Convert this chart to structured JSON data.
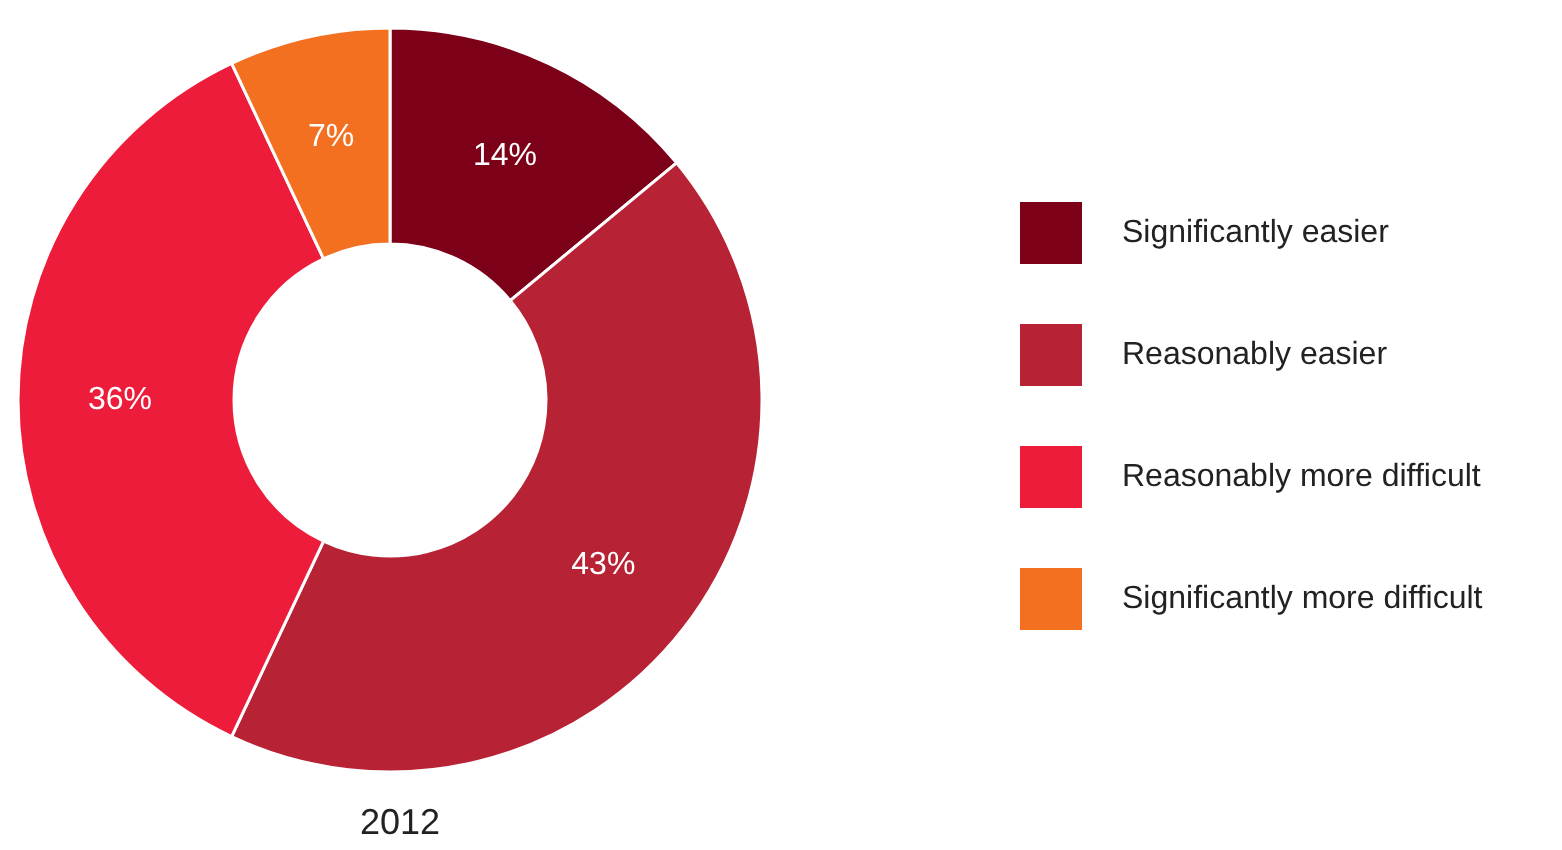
{
  "chart_data": {
    "type": "donut",
    "title": "2012",
    "categories": [
      "Significantly easier",
      "Reasonably easier",
      "Reasonably more difficult",
      "Significantly more difficult"
    ],
    "values": [
      14,
      43,
      36,
      7
    ],
    "colors": [
      "#7d0019",
      "#b72234",
      "#ec1c3a",
      "#f37021"
    ],
    "value_labels": [
      "14%",
      "43%",
      "36%",
      "7%"
    ],
    "legend": "right"
  }
}
